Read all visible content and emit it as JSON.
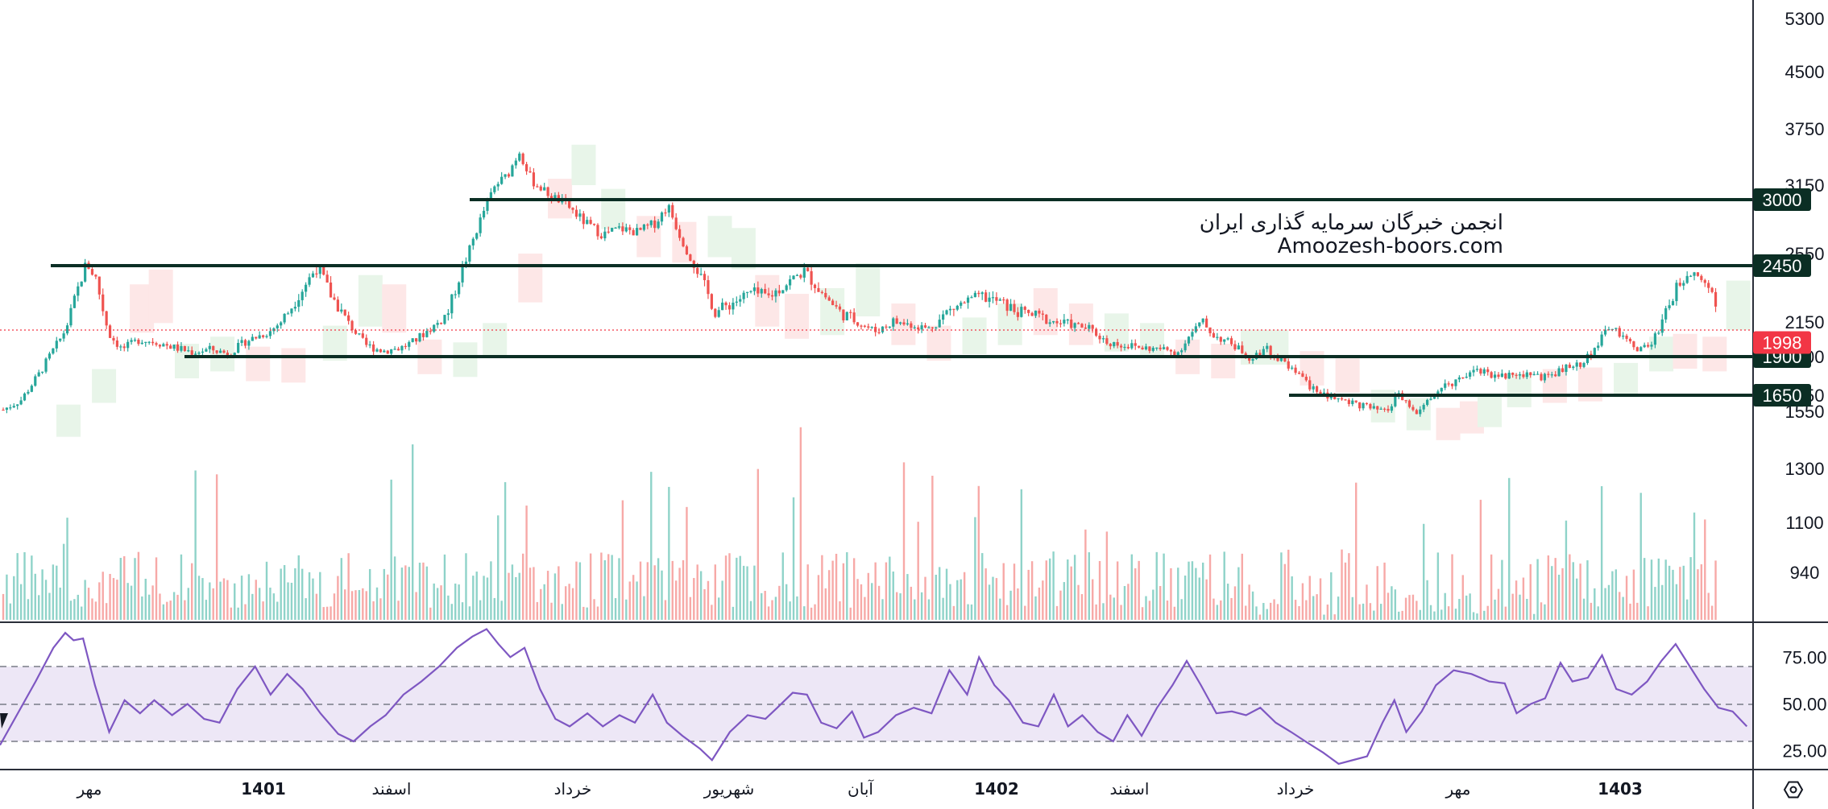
{
  "watermark": {
    "line1": "انجمن خبرگان سرمایه گذاری ایران",
    "line2": "Amoozesh-boors.com"
  },
  "colors": {
    "up": "#26a69a",
    "down": "#ef5350",
    "level_line": "#0b2e24",
    "level_badge": "#0b2e24",
    "current_badge": "#f23645",
    "rsi_line": "#7e57c2",
    "rsi_band": "#ede7f6",
    "cloud_bull": "#e8f5e9",
    "cloud_bear": "#fde7e7"
  },
  "icons": {
    "settings": "settings-icon"
  },
  "chart_data": [
    {
      "type": "candlestick",
      "name": "price",
      "yaxis": {
        "ticks": [
          1550,
          1650,
          1900,
          2150,
          2550,
          3150,
          3750,
          4500,
          5300
        ],
        "labels": [
          "1550",
          "1650",
          "1900",
          "2150",
          "2550",
          "3150",
          "3750",
          "4500",
          "5300"
        ],
        "scale": "log"
      },
      "horizontal_levels": [
        {
          "value": 3000,
          "label": "3000"
        },
        {
          "value": 2450,
          "label": "2450"
        },
        {
          "value": 1900,
          "label": "1900"
        },
        {
          "value": 1650,
          "label": "1650"
        }
      ],
      "current_price": {
        "value": 1998,
        "label": "1998"
      },
      "xaxis": {
        "labels": [
          "مهر",
          "1401",
          "اسفند",
          "خرداد",
          "شهریور",
          "آبان",
          "1402",
          "اسفند",
          "خرداد",
          "مهر",
          "1403"
        ],
        "bold": [
          "1401",
          "1402",
          "1403"
        ]
      },
      "close_path": [
        [
          0,
          1560
        ],
        [
          15,
          1620
        ],
        [
          30,
          1780
        ],
        [
          50,
          2050
        ],
        [
          62,
          2300
        ],
        [
          70,
          2470
        ],
        [
          78,
          2380
        ],
        [
          90,
          2050
        ],
        [
          100,
          1950
        ],
        [
          115,
          2020
        ],
        [
          130,
          2000
        ],
        [
          145,
          1960
        ],
        [
          160,
          1930
        ],
        [
          175,
          1950
        ],
        [
          190,
          1920
        ],
        [
          205,
          2010
        ],
        [
          225,
          2080
        ],
        [
          240,
          2200
        ],
        [
          255,
          2350
        ],
        [
          265,
          2450
        ],
        [
          275,
          2300
        ],
        [
          290,
          2150
        ],
        [
          305,
          1980
        ],
        [
          320,
          1940
        ],
        [
          335,
          1960
        ],
        [
          345,
          2000
        ],
        [
          360,
          2100
        ],
        [
          375,
          2200
        ],
        [
          390,
          2500
        ],
        [
          405,
          2900
        ],
        [
          415,
          3150
        ],
        [
          425,
          3250
        ],
        [
          435,
          3500
        ],
        [
          445,
          3200
        ],
        [
          460,
          3050
        ],
        [
          475,
          2950
        ],
        [
          490,
          2800
        ],
        [
          505,
          2700
        ],
        [
          520,
          2750
        ],
        [
          535,
          2720
        ],
        [
          550,
          2800
        ],
        [
          560,
          2950
        ],
        [
          570,
          2700
        ],
        [
          580,
          2500
        ],
        [
          590,
          2350
        ],
        [
          600,
          2200
        ],
        [
          615,
          2250
        ],
        [
          630,
          2300
        ],
        [
          645,
          2280
        ],
        [
          660,
          2350
        ],
        [
          675,
          2420
        ],
        [
          690,
          2300
        ],
        [
          705,
          2200
        ],
        [
          720,
          2150
        ],
        [
          735,
          2080
        ],
        [
          750,
          2150
        ],
        [
          765,
          2130
        ],
        [
          780,
          2100
        ],
        [
          795,
          2200
        ],
        [
          810,
          2250
        ],
        [
          825,
          2280
        ],
        [
          840,
          2250
        ],
        [
          855,
          2200
        ],
        [
          870,
          2180
        ],
        [
          885,
          2150
        ],
        [
          900,
          2130
        ],
        [
          915,
          2100
        ],
        [
          930,
          2000
        ],
        [
          945,
          1980
        ],
        [
          960,
          1960
        ],
        [
          975,
          1950
        ],
        [
          990,
          1930
        ],
        [
          1000,
          2050
        ],
        [
          1010,
          2150
        ],
        [
          1020,
          2050
        ],
        [
          1035,
          1990
        ],
        [
          1050,
          1900
        ],
        [
          1065,
          1950
        ],
        [
          1080,
          1850
        ],
        [
          1095,
          1750
        ],
        [
          1110,
          1650
        ],
        [
          1125,
          1630
        ],
        [
          1140,
          1600
        ],
        [
          1155,
          1560
        ],
        [
          1165,
          1540
        ],
        [
          1175,
          1650
        ],
        [
          1185,
          1580
        ],
        [
          1192,
          1520
        ],
        [
          1200,
          1620
        ],
        [
          1215,
          1700
        ],
        [
          1225,
          1750
        ],
        [
          1240,
          1820
        ],
        [
          1255,
          1780
        ],
        [
          1270,
          1770
        ],
        [
          1285,
          1790
        ],
        [
          1300,
          1760
        ],
        [
          1315,
          1820
        ],
        [
          1330,
          1850
        ],
        [
          1345,
          2000
        ],
        [
          1355,
          2130
        ],
        [
          1365,
          2020
        ],
        [
          1380,
          1950
        ],
        [
          1390,
          2000
        ],
        [
          1400,
          2200
        ],
        [
          1410,
          2320
        ],
        [
          1420,
          2430
        ],
        [
          1430,
          2400
        ],
        [
          1440,
          2300
        ],
        [
          1450,
          2100
        ],
        [
          1460,
          2150
        ],
        [
          1470,
          2080
        ],
        [
          1476,
          1998
        ]
      ]
    },
    {
      "type": "bar",
      "name": "volume",
      "note": "colored by candle direction"
    },
    {
      "type": "line",
      "name": "RSI",
      "yaxis": {
        "ticks": [
          25,
          50,
          75
        ],
        "labels": [
          "25.00",
          "50.00",
          "75.00"
        ],
        "band": [
          30,
          70
        ]
      },
      "values_path": [
        [
          0,
          28
        ],
        [
          15,
          45
        ],
        [
          30,
          62
        ],
        [
          45,
          80
        ],
        [
          55,
          88
        ],
        [
          62,
          84
        ],
        [
          70,
          85
        ],
        [
          80,
          60
        ],
        [
          92,
          35
        ],
        [
          105,
          52
        ],
        [
          118,
          45
        ],
        [
          130,
          52
        ],
        [
          145,
          44
        ],
        [
          158,
          50
        ],
        [
          172,
          42
        ],
        [
          185,
          40
        ],
        [
          200,
          58
        ],
        [
          215,
          70
        ],
        [
          228,
          55
        ],
        [
          242,
          66
        ],
        [
          255,
          58
        ],
        [
          270,
          45
        ],
        [
          285,
          34
        ],
        [
          298,
          30
        ],
        [
          312,
          38
        ],
        [
          325,
          44
        ],
        [
          340,
          55
        ],
        [
          355,
          62
        ],
        [
          370,
          70
        ],
        [
          385,
          80
        ],
        [
          398,
          86
        ],
        [
          410,
          90
        ],
        [
          420,
          82
        ],
        [
          430,
          75
        ],
        [
          442,
          80
        ],
        [
          455,
          58
        ],
        [
          468,
          42
        ],
        [
          480,
          38
        ],
        [
          495,
          45
        ],
        [
          508,
          38
        ],
        [
          522,
          44
        ],
        [
          535,
          40
        ],
        [
          550,
          55
        ],
        [
          562,
          40
        ],
        [
          575,
          33
        ],
        [
          590,
          26
        ],
        [
          600,
          20
        ],
        [
          615,
          35
        ],
        [
          630,
          44
        ],
        [
          645,
          42
        ],
        [
          655,
          48
        ],
        [
          668,
          56
        ],
        [
          680,
          55
        ],
        [
          692,
          40
        ],
        [
          705,
          37
        ],
        [
          718,
          46
        ],
        [
          728,
          32
        ],
        [
          740,
          35
        ],
        [
          755,
          44
        ],
        [
          770,
          48
        ],
        [
          785,
          45
        ],
        [
          800,
          68
        ],
        [
          815,
          55
        ],
        [
          825,
          75
        ],
        [
          838,
          60
        ],
        [
          850,
          52
        ],
        [
          862,
          40
        ],
        [
          875,
          38
        ],
        [
          888,
          55
        ],
        [
          900,
          38
        ],
        [
          912,
          44
        ],
        [
          925,
          35
        ],
        [
          938,
          30
        ],
        [
          950,
          44
        ],
        [
          962,
          33
        ],
        [
          975,
          48
        ],
        [
          988,
          60
        ],
        [
          1000,
          73
        ],
        [
          1012,
          60
        ],
        [
          1025,
          45
        ],
        [
          1038,
          46
        ],
        [
          1050,
          44
        ],
        [
          1062,
          48
        ],
        [
          1075,
          40
        ],
        [
          1088,
          35
        ],
        [
          1100,
          30
        ],
        [
          1115,
          24
        ],
        [
          1128,
          18
        ],
        [
          1140,
          20
        ],
        [
          1152,
          22
        ],
        [
          1165,
          40
        ],
        [
          1175,
          52
        ],
        [
          1185,
          35
        ],
        [
          1198,
          46
        ],
        [
          1210,
          60
        ],
        [
          1225,
          68
        ],
        [
          1240,
          66
        ],
        [
          1255,
          62
        ],
        [
          1268,
          61
        ],
        [
          1278,
          45
        ],
        [
          1290,
          50
        ],
        [
          1302,
          53
        ],
        [
          1315,
          72
        ],
        [
          1325,
          62
        ],
        [
          1338,
          64
        ],
        [
          1350,
          76
        ],
        [
          1362,
          58
        ],
        [
          1375,
          55
        ],
        [
          1388,
          62
        ],
        [
          1400,
          73
        ],
        [
          1412,
          82
        ],
        [
          1424,
          70
        ],
        [
          1436,
          58
        ],
        [
          1448,
          48
        ],
        [
          1460,
          46
        ],
        [
          1472,
          38
        ]
      ]
    }
  ]
}
